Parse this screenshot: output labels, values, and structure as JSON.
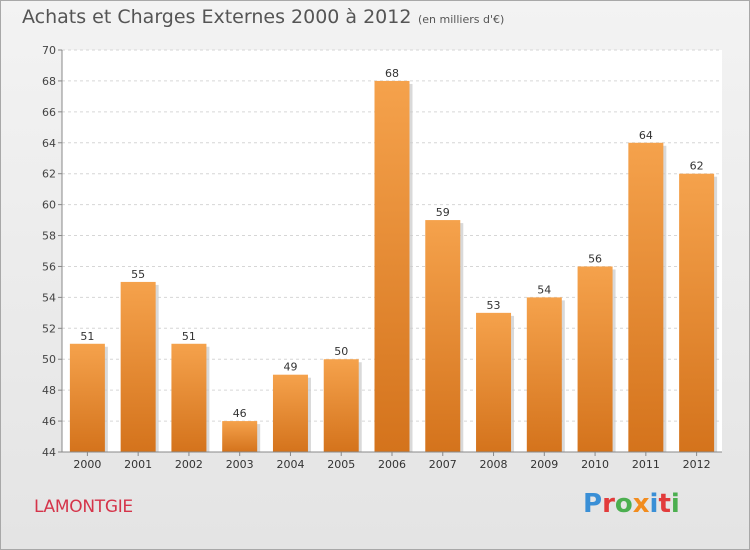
{
  "header": {
    "title": "Achats et Charges Externes 2000 à 2012",
    "unit": "(en milliers d'€)"
  },
  "footer": {
    "commune": "LAMONTGIE",
    "logo": "Proxiti"
  },
  "colors": {
    "bar_top": "#f5a24c",
    "bar_bottom": "#d4731c",
    "commune": "#d5344a"
  },
  "chart_data": {
    "type": "bar",
    "title": "Achats et Charges Externes 2000 à 2012",
    "subtitle": "(en milliers d'€)",
    "categories": [
      "2000",
      "2001",
      "2002",
      "2003",
      "2004",
      "2005",
      "2006",
      "2007",
      "2008",
      "2009",
      "2010",
      "2011",
      "2012"
    ],
    "values": [
      51,
      55,
      51,
      46,
      49,
      50,
      68,
      59,
      53,
      54,
      56,
      64,
      62
    ],
    "ylim": [
      44,
      70
    ],
    "yticks": [
      44,
      46,
      48,
      50,
      52,
      54,
      56,
      58,
      60,
      62,
      64,
      66,
      68,
      70
    ],
    "grid": true,
    "data_labels": true
  }
}
